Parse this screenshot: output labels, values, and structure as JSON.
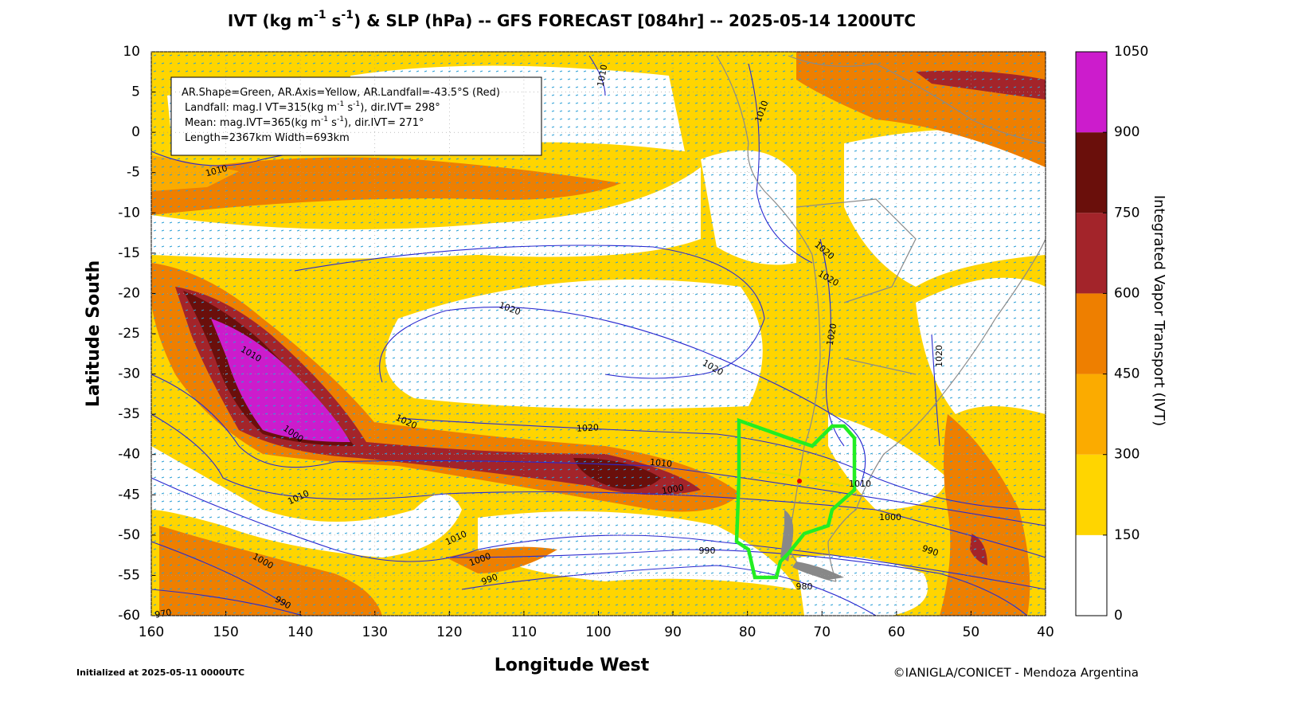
{
  "title": [
    "IVT (kg m",
    "-1",
    " s",
    "-1",
    ") & SLP (hPa) -- GFS FORECAST [084hr] -- 2025-05-14 1200UTC"
  ],
  "info_box": [
    [
      "AR.Shape=Green, AR.Axis=Yellow, AR.Landfall=-43.5°S (Red)"
    ],
    [
      "Landfall: mag.I VT=315(kg m",
      "-1",
      " s",
      "-1",
      "), dir.IVT= 298°"
    ],
    [
      "Mean: mag.IVT=365(kg m",
      "-1",
      " s",
      "-1",
      "), dir.IVT= 271°"
    ],
    [
      "Length=2367km   Width=693km"
    ]
  ],
  "map": {
    "x_label": "Longitude West",
    "y_label": "Latitude South",
    "xlim": [
      160,
      40
    ],
    "ylim": [
      -60,
      10
    ],
    "xticks": [
      160,
      150,
      140,
      130,
      120,
      110,
      100,
      90,
      80,
      70,
      60,
      50,
      40
    ],
    "yticks": [
      10,
      5,
      0,
      -5,
      -10,
      -15,
      -20,
      -25,
      -30,
      -35,
      -40,
      -45,
      -50,
      -55,
      -60
    ],
    "grid": true
  },
  "colorbar": {
    "label": "Integrated Vapor Transport (IVT)",
    "levels": [
      0,
      150,
      300,
      450,
      600,
      750,
      900,
      1050
    ],
    "colors": [
      "#ffffff",
      "#ffd500",
      "#fbab00",
      "#ee7f00",
      "#a3242a",
      "#6a0f0b",
      "#cc1ccc"
    ]
  },
  "contour_labels": [
    1010,
    1010,
    1010,
    1020,
    1020,
    1020,
    1020,
    1020,
    1020,
    1010,
    1020,
    1020,
    1000,
    1010,
    1000,
    1010,
    1010,
    1000,
    1010,
    990,
    990,
    1000,
    1000,
    990,
    980,
    990,
    970
  ],
  "footer": {
    "left": "Initialized at 2025-05-11 0000UTC",
    "right": "©IANIGLA/CONICET - Mendoza Argentina"
  }
}
